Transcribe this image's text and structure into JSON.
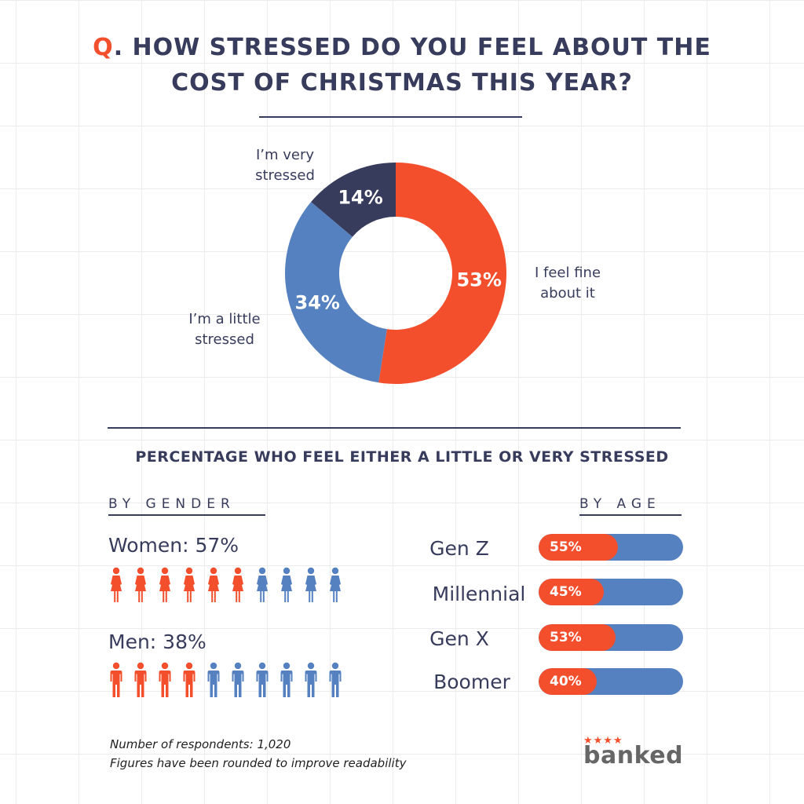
{
  "title": {
    "prefix": "Q",
    "line1": ". HOW STRESSED DO YOU FEEL ABOUT THE",
    "line2": "COST OF CHRISTMAS THIS YEAR?"
  },
  "colors": {
    "orange": "#f44f2d",
    "blue": "#5581c0",
    "navy": "#383c5c"
  },
  "chart_data": [
    {
      "type": "pie",
      "title": "",
      "categories": [
        "I feel fine about it",
        "I'm a little stressed",
        "I'm very stressed"
      ],
      "values": [
        53,
        34,
        14
      ],
      "value_labels": [
        "53%",
        "34%",
        "14%"
      ],
      "colors": [
        "#f44f2d",
        "#5581c0",
        "#383c5c"
      ],
      "label_lines": [
        [
          "I feel fine",
          "about it"
        ],
        [
          "I’m a little",
          "stressed"
        ],
        [
          "I’m very",
          "stressed"
        ]
      ]
    },
    {
      "type": "bar",
      "title": "",
      "categories": [
        "Gen Z",
        "Millennial",
        "Gen X",
        "Boomer"
      ],
      "values": [
        55,
        45,
        53,
        40
      ],
      "value_labels": [
        "55%",
        "45%",
        "53%",
        "40%"
      ],
      "ylim": [
        0,
        100
      ]
    }
  ],
  "section_title": "PERCENTAGE WHO FEEL EITHER A LITTLE OR VERY STRESSED",
  "gender": {
    "heading": "BY GENDER",
    "rows": [
      {
        "label": "Women: 57%",
        "icon": "woman-icon",
        "filled": 6,
        "total": 10
      },
      {
        "label": "Men: 38%",
        "icon": "man-icon",
        "filled": 4,
        "total": 10
      }
    ]
  },
  "age": {
    "heading": "BY AGE"
  },
  "footnote": {
    "line1": "Number of respondents: 1,020",
    "line2": "Figures have been rounded to improve readability"
  },
  "logo": {
    "stars": "★★★★",
    "text": "banked"
  }
}
